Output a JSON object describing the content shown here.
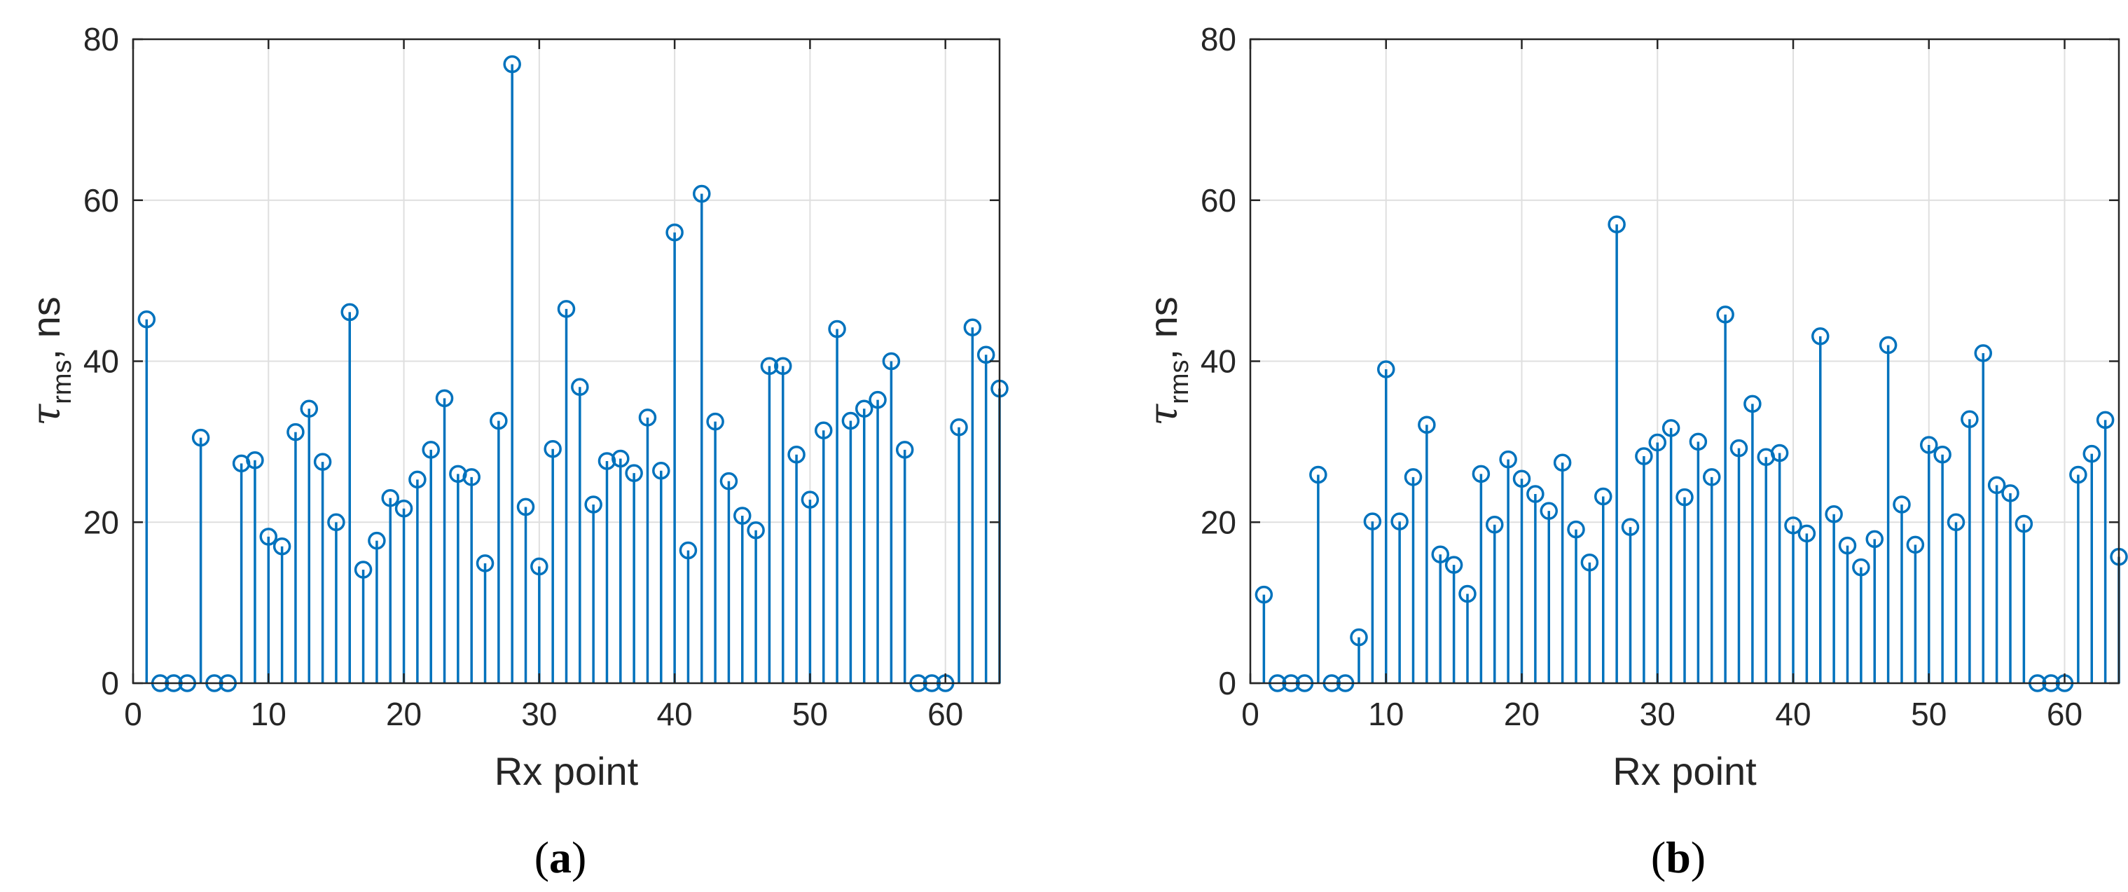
{
  "chart_data": [
    {
      "type": "stem",
      "panel_label": "a",
      "xlabel": "Rx point",
      "ylabel": "τ",
      "ylabel_subscript": "rms",
      "ylabel_unit": ", ns",
      "xlim": [
        0,
        64
      ],
      "ylim": [
        0,
        80
      ],
      "xticks": [
        0,
        10,
        20,
        30,
        40,
        50,
        60
      ],
      "yticks": [
        0,
        20,
        40,
        60,
        80
      ],
      "grid": true,
      "marker": "circle",
      "color": "#0072BD",
      "series": [
        {
          "x": [
            1,
            2,
            3,
            4,
            5,
            6,
            7,
            8,
            9,
            10,
            11,
            12,
            13,
            14,
            15,
            16,
            17,
            18,
            19,
            20,
            21,
            22,
            23,
            24,
            25,
            26,
            27,
            28,
            29,
            30,
            31,
            32,
            33,
            34,
            35,
            36,
            37,
            38,
            39,
            40,
            41,
            42,
            43,
            44,
            45,
            46,
            47,
            48,
            49,
            50,
            51,
            52,
            53,
            54,
            55,
            56,
            57,
            58,
            59,
            60,
            61,
            62,
            63,
            64
          ],
          "y": [
            45.2,
            0,
            0,
            0,
            30.5,
            0,
            0,
            27.3,
            27.7,
            18.2,
            17,
            31.2,
            34.1,
            27.5,
            20,
            46.1,
            14.1,
            17.7,
            23,
            21.7,
            25.3,
            29,
            35.4,
            26,
            25.6,
            14.9,
            32.6,
            76.9,
            21.9,
            14.5,
            29.1,
            46.5,
            36.8,
            22.2,
            27.6,
            27.9,
            26.1,
            33,
            26.4,
            56,
            16.5,
            60.8,
            32.5,
            25.1,
            20.8,
            19,
            39.4,
            39.4,
            28.4,
            22.8,
            31.4,
            44,
            32.6,
            34.1,
            35.2,
            40,
            29,
            0,
            0,
            0,
            31.8,
            44.2,
            40.8,
            36.6
          ]
        }
      ]
    },
    {
      "type": "stem",
      "panel_label": "b",
      "xlabel": "Rx point",
      "ylabel": "τ",
      "ylabel_subscript": "rms",
      "ylabel_unit": ", ns",
      "xlim": [
        0,
        64
      ],
      "ylim": [
        0,
        80
      ],
      "xticks": [
        0,
        10,
        20,
        30,
        40,
        50,
        60
      ],
      "yticks": [
        0,
        20,
        40,
        60,
        80
      ],
      "grid": true,
      "marker": "circle",
      "color": "#0072BD",
      "series": [
        {
          "x": [
            1,
            2,
            3,
            4,
            5,
            6,
            7,
            8,
            9,
            10,
            11,
            12,
            13,
            14,
            15,
            16,
            17,
            18,
            19,
            20,
            21,
            22,
            23,
            24,
            25,
            26,
            27,
            28,
            29,
            30,
            31,
            32,
            33,
            34,
            35,
            36,
            37,
            38,
            39,
            40,
            41,
            42,
            43,
            44,
            45,
            46,
            47,
            48,
            49,
            50,
            51,
            52,
            53,
            54,
            55,
            56,
            57,
            58,
            59,
            60,
            61,
            62,
            63,
            64
          ],
          "y": [
            11,
            0,
            0,
            0,
            25.9,
            0,
            0,
            5.7,
            20.1,
            39,
            20.1,
            25.6,
            32.1,
            16,
            14.7,
            11.1,
            26,
            19.7,
            27.8,
            25.4,
            23.5,
            21.4,
            27.4,
            19.1,
            15,
            23.2,
            57,
            19.4,
            28.2,
            29.9,
            31.7,
            23.1,
            30,
            25.6,
            45.8,
            29.2,
            34.7,
            28.1,
            28.6,
            19.6,
            18.6,
            43.1,
            21,
            17.1,
            14.4,
            17.9,
            42,
            22.2,
            17.2,
            29.6,
            28.4,
            20,
            32.8,
            41,
            24.6,
            23.6,
            19.8,
            0,
            0,
            0,
            25.9,
            28.5,
            32.7,
            15.7
          ]
        }
      ]
    }
  ]
}
